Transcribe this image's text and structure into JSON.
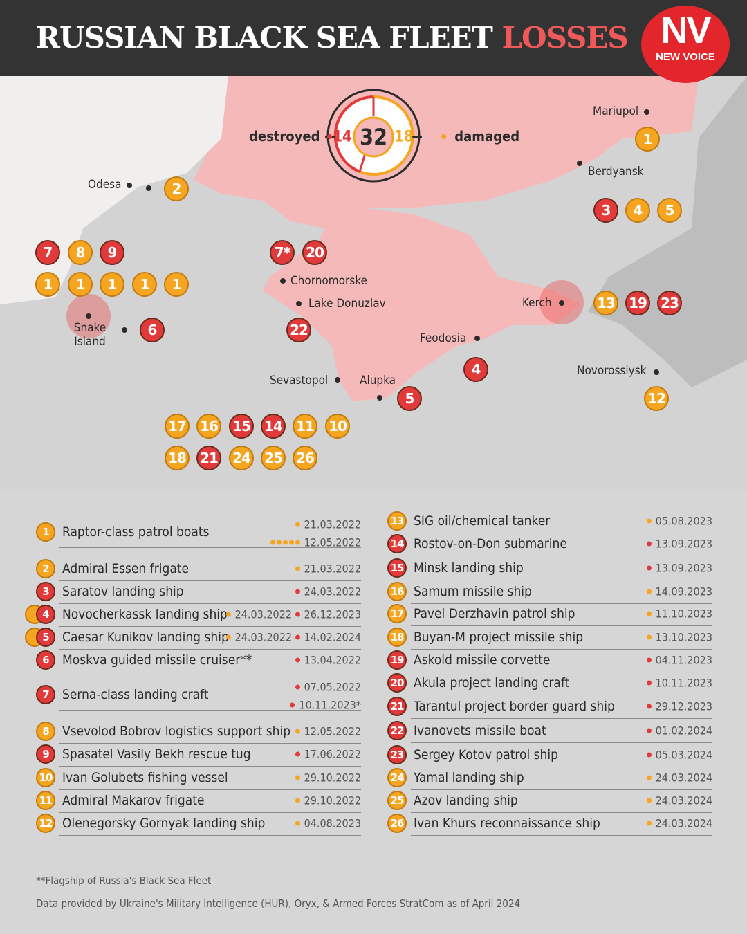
{
  "header": {
    "title_main": "RUSSIAN BLACK SEA FLEET",
    "title_highlight": "LOSSES",
    "logo_big": "NV",
    "logo_small": "NEW VOICE"
  },
  "colors": {
    "destroyed": "#e23a3b",
    "damaged": "#f5a51f",
    "header": "#333333",
    "occupied": "#f6b9b9"
  },
  "counter": {
    "total": "32",
    "destroyed": "14",
    "damaged": "18",
    "destroyed_label": "destroyed",
    "damaged_label": "damaged"
  },
  "map": {
    "places": [
      "Mariupol",
      "Berdyansk",
      "Odesa",
      "Snake Island",
      "Chornomorske",
      "Lake Donuzlav",
      "Kerch",
      "Feodosia",
      "Novorossiysk",
      "Sevastopol",
      "Alupka"
    ],
    "markers": [
      {
        "n": "1",
        "s": "m"
      },
      {
        "n": "3",
        "s": "d"
      },
      {
        "n": "4",
        "s": "m"
      },
      {
        "n": "5",
        "s": "m"
      },
      {
        "n": "2",
        "s": "m"
      },
      {
        "n": "7",
        "s": "d"
      },
      {
        "n": "8",
        "s": "m"
      },
      {
        "n": "9",
        "s": "d"
      },
      {
        "n": "1",
        "s": "m"
      },
      {
        "n": "1",
        "s": "m"
      },
      {
        "n": "1",
        "s": "m"
      },
      {
        "n": "1",
        "s": "m"
      },
      {
        "n": "1",
        "s": "m"
      },
      {
        "n": "6",
        "s": "d"
      },
      {
        "n": "7*",
        "s": "d"
      },
      {
        "n": "20",
        "s": "d"
      },
      {
        "n": "22",
        "s": "d"
      },
      {
        "n": "13",
        "s": "m"
      },
      {
        "n": "19",
        "s": "d"
      },
      {
        "n": "23",
        "s": "d"
      },
      {
        "n": "4",
        "s": "d"
      },
      {
        "n": "12",
        "s": "m"
      },
      {
        "n": "5",
        "s": "d"
      },
      {
        "n": "17",
        "s": "m"
      },
      {
        "n": "16",
        "s": "m"
      },
      {
        "n": "15",
        "s": "d"
      },
      {
        "n": "14",
        "s": "d"
      },
      {
        "n": "11",
        "s": "m"
      },
      {
        "n": "10",
        "s": "m"
      },
      {
        "n": "18",
        "s": "m"
      },
      {
        "n": "21",
        "s": "d"
      },
      {
        "n": "24",
        "s": "m"
      },
      {
        "n": "25",
        "s": "m"
      },
      {
        "n": "26",
        "s": "m"
      }
    ]
  },
  "list": [
    {
      "n": "1",
      "s": "m",
      "name": "Raptor-class patrol boats",
      "dates": [
        {
          "date": "21.03.2022",
          "s": "m"
        },
        {
          "date": "12.05.2022",
          "s": "m",
          "dots": 5
        }
      ]
    },
    {
      "n": "2",
      "s": "m",
      "name": "Admiral Essen frigate",
      "dates": [
        {
          "date": "21.03.2022",
          "s": "m"
        }
      ]
    },
    {
      "n": "3",
      "s": "d",
      "name": "Saratov landing ship",
      "dates": [
        {
          "date": "24.03.2022",
          "s": "d"
        }
      ]
    },
    {
      "n": "4",
      "s": "d",
      "prev": "m",
      "name": "Novocherkassk landing ship",
      "dates": [
        {
          "date": "24.03.2022",
          "s": "m",
          "inline": true
        },
        {
          "date": "26.12.2023",
          "s": "d"
        }
      ]
    },
    {
      "n": "5",
      "s": "d",
      "prev": "m",
      "name": "Caesar Kunikov landing ship",
      "dates": [
        {
          "date": "24.03.2022",
          "s": "m",
          "inline": true
        },
        {
          "date": "14.02.2024",
          "s": "d"
        }
      ]
    },
    {
      "n": "6",
      "s": "d",
      "name": "Moskva guided missile cruiser**",
      "dates": [
        {
          "date": "13.04.2022",
          "s": "d"
        }
      ]
    },
    {
      "n": "7",
      "s": "d",
      "name": "Serna-class landing craft",
      "dates": [
        {
          "date": "07.05.2022",
          "s": "d"
        },
        {
          "date": "10.11.2023*",
          "s": "d"
        }
      ]
    },
    {
      "n": "8",
      "s": "m",
      "name": "Vsevolod Bobrov logistics support ship",
      "dates": [
        {
          "date": "12.05.2022",
          "s": "m"
        }
      ]
    },
    {
      "n": "9",
      "s": "d",
      "name": "Spasatel Vasily Bekh rescue tug",
      "dates": [
        {
          "date": "17.06.2022",
          "s": "d"
        }
      ]
    },
    {
      "n": "10",
      "s": "m",
      "name": "Ivan Golubets fishing vessel",
      "dates": [
        {
          "date": "29.10.2022",
          "s": "m"
        }
      ]
    },
    {
      "n": "11",
      "s": "m",
      "name": "Admiral Makarov frigate",
      "dates": [
        {
          "date": "29.10.2022",
          "s": "m"
        }
      ]
    },
    {
      "n": "12",
      "s": "m",
      "name": "Olenegorsky Gornyak landing ship",
      "dates": [
        {
          "date": "04.08.2023",
          "s": "m"
        }
      ]
    },
    {
      "n": "13",
      "s": "m",
      "name": "SIG oil/chemical tanker",
      "dates": [
        {
          "date": "05.08.2023",
          "s": "m"
        }
      ]
    },
    {
      "n": "14",
      "s": "d",
      "name": "Rostov-on-Don submarine",
      "dates": [
        {
          "date": "13.09.2023",
          "s": "d"
        }
      ]
    },
    {
      "n": "15",
      "s": "d",
      "name": "Minsk landing ship",
      "dates": [
        {
          "date": "13.09.2023",
          "s": "d"
        }
      ]
    },
    {
      "n": "16",
      "s": "m",
      "name": "Samum missile ship",
      "dates": [
        {
          "date": "14.09.2023",
          "s": "m"
        }
      ]
    },
    {
      "n": "17",
      "s": "m",
      "name": "Pavel Derzhavin patrol ship",
      "dates": [
        {
          "date": "11.10.2023",
          "s": "m"
        }
      ]
    },
    {
      "n": "18",
      "s": "m",
      "name": "Buyan-M project missile ship",
      "dates": [
        {
          "date": "13.10.2023",
          "s": "m"
        }
      ]
    },
    {
      "n": "19",
      "s": "d",
      "name": "Askold missile corvette",
      "dates": [
        {
          "date": "04.11.2023",
          "s": "d"
        }
      ]
    },
    {
      "n": "20",
      "s": "d",
      "name": "Akula project landing craft",
      "dates": [
        {
          "date": "10.11.2023",
          "s": "d"
        }
      ]
    },
    {
      "n": "21",
      "s": "d",
      "name": "Tarantul project border guard ship",
      "dates": [
        {
          "date": "29.12.2023",
          "s": "d"
        }
      ]
    },
    {
      "n": "22",
      "s": "d",
      "name": "Ivanovets missile boat",
      "dates": [
        {
          "date": "01.02.2024",
          "s": "d"
        }
      ]
    },
    {
      "n": "23",
      "s": "d",
      "name": "Sergey Kotov patrol ship",
      "dates": [
        {
          "date": "05.03.2024",
          "s": "d"
        }
      ]
    },
    {
      "n": "24",
      "s": "m",
      "name": "Yamal landing ship",
      "dates": [
        {
          "date": "24.03.2024",
          "s": "m"
        }
      ]
    },
    {
      "n": "25",
      "s": "m",
      "name": "Azov landing ship",
      "dates": [
        {
          "date": "24.03.2024",
          "s": "m"
        }
      ]
    },
    {
      "n": "26",
      "s": "m",
      "name": "Ivan Khurs reconnaissance ship",
      "dates": [
        {
          "date": "24.03.2024",
          "s": "m"
        }
      ]
    }
  ],
  "footer": {
    "note": "**Flagship of Russia's Black Sea Fleet",
    "source": "Data provided by Ukraine's Military Intelligence (HUR), Oryx, & Armed Forces StratCom as of April 2024"
  }
}
